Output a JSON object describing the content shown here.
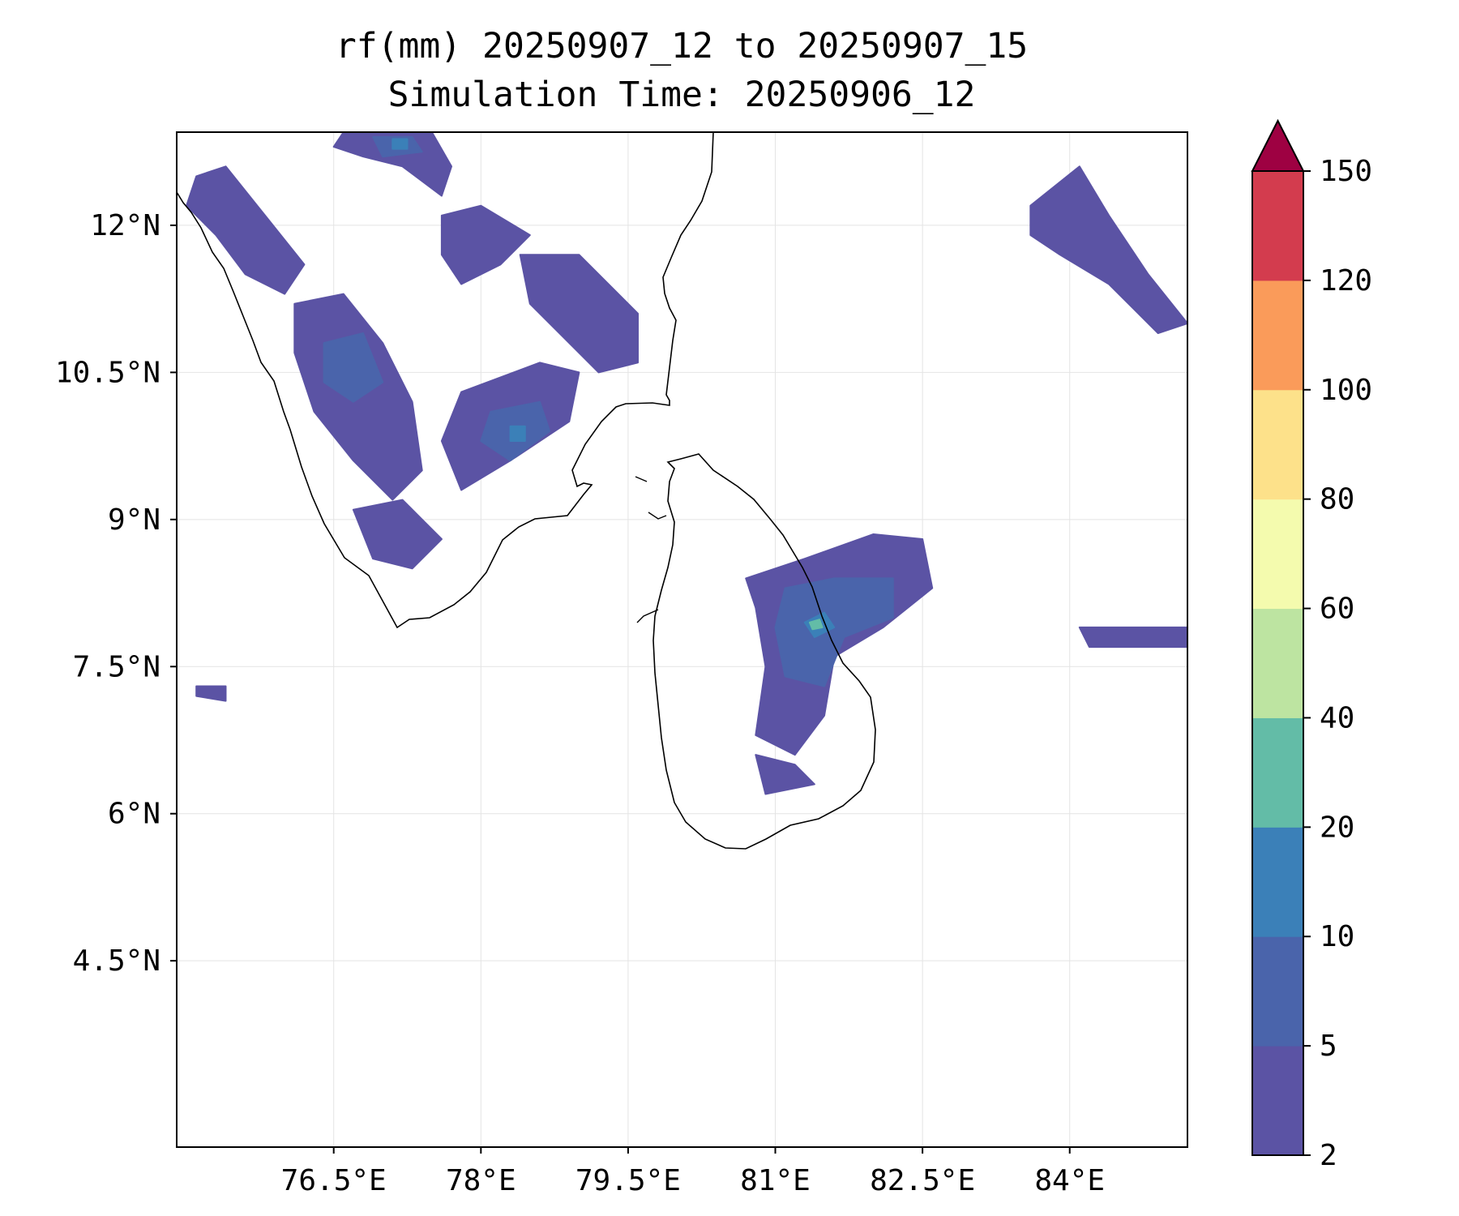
{
  "title": {
    "line1": "rf(mm) 20250907_12 to 20250907_15",
    "line2": "Simulation Time: 20250906_12"
  },
  "map": {
    "extent": {
      "lon_min": 74.9,
      "lon_max": 85.2,
      "lat_min": 2.6,
      "lat_max": 12.95
    },
    "x_ticks": [
      76.5,
      78,
      79.5,
      81,
      82.5,
      84
    ],
    "x_tick_labels": [
      "76.5°E",
      "78°E",
      "79.5°E",
      "81°E",
      "82.5°E",
      "84°E"
    ],
    "y_ticks": [
      4.5,
      6,
      7.5,
      9,
      10.5,
      12
    ],
    "y_tick_labels": [
      "4.5°N",
      "6°N",
      "7.5°N",
      "9°N",
      "10.5°N",
      "12°N"
    ],
    "gridlines": true,
    "coastline_color": "#000000",
    "rain_regions": [
      {
        "name": "north-kerala-western-ghats",
        "level": 0,
        "lonlat": [
          [
            75.1,
            12.5
          ],
          [
            75.4,
            12.6
          ],
          [
            75.8,
            12.1
          ],
          [
            76.2,
            11.6
          ],
          [
            76.0,
            11.3
          ],
          [
            75.6,
            11.5
          ],
          [
            75.3,
            11.9
          ],
          [
            75.0,
            12.2
          ]
        ]
      },
      {
        "name": "nilgiris-band",
        "level": 0,
        "lonlat": [
          [
            76.6,
            12.95
          ],
          [
            77.5,
            12.95
          ],
          [
            77.7,
            12.6
          ],
          [
            77.6,
            12.3
          ],
          [
            77.2,
            12.6
          ],
          [
            76.8,
            12.7
          ],
          [
            76.5,
            12.8
          ]
        ]
      },
      {
        "name": "nilgiris-core",
        "level": 1,
        "lonlat": [
          [
            76.9,
            12.9
          ],
          [
            77.3,
            12.9
          ],
          [
            77.4,
            12.75
          ],
          [
            77.0,
            12.7
          ]
        ]
      },
      {
        "name": "nilgiris-peak",
        "level": 2,
        "lonlat": [
          [
            77.1,
            12.88
          ],
          [
            77.25,
            12.88
          ],
          [
            77.25,
            12.78
          ],
          [
            77.1,
            12.78
          ]
        ]
      },
      {
        "name": "salem-band",
        "level": 0,
        "lonlat": [
          [
            77.6,
            12.1
          ],
          [
            78.0,
            12.2
          ],
          [
            78.5,
            11.9
          ],
          [
            78.2,
            11.6
          ],
          [
            77.8,
            11.4
          ],
          [
            77.6,
            11.7
          ]
        ]
      },
      {
        "name": "trichy-band",
        "level": 0,
        "lonlat": [
          [
            78.4,
            11.7
          ],
          [
            79.0,
            11.7
          ],
          [
            79.6,
            11.1
          ],
          [
            79.6,
            10.6
          ],
          [
            79.2,
            10.5
          ],
          [
            78.8,
            10.9
          ],
          [
            78.5,
            11.2
          ]
        ]
      },
      {
        "name": "madurai-band",
        "level": 0,
        "lonlat": [
          [
            77.8,
            10.3
          ],
          [
            78.6,
            10.6
          ],
          [
            79.0,
            10.5
          ],
          [
            78.9,
            10.0
          ],
          [
            78.3,
            9.6
          ],
          [
            77.8,
            9.3
          ],
          [
            77.6,
            9.8
          ]
        ]
      },
      {
        "name": "madurai-core",
        "level": 1,
        "lonlat": [
          [
            78.1,
            10.1
          ],
          [
            78.6,
            10.2
          ],
          [
            78.7,
            9.9
          ],
          [
            78.3,
            9.6
          ],
          [
            78.0,
            9.8
          ]
        ]
      },
      {
        "name": "madurai-peak",
        "level": 2,
        "lonlat": [
          [
            78.3,
            9.95
          ],
          [
            78.45,
            9.95
          ],
          [
            78.45,
            9.8
          ],
          [
            78.3,
            9.8
          ]
        ]
      },
      {
        "name": "kerala-ghats-south",
        "level": 0,
        "lonlat": [
          [
            76.1,
            11.2
          ],
          [
            76.6,
            11.3
          ],
          [
            77.0,
            10.8
          ],
          [
            77.3,
            10.2
          ],
          [
            77.4,
            9.5
          ],
          [
            77.1,
            9.2
          ],
          [
            76.7,
            9.6
          ],
          [
            76.3,
            10.1
          ],
          [
            76.1,
            10.7
          ]
        ]
      },
      {
        "name": "kerala-ghats-core",
        "level": 1,
        "lonlat": [
          [
            76.4,
            10.8
          ],
          [
            76.8,
            10.9
          ],
          [
            77.0,
            10.4
          ],
          [
            76.7,
            10.2
          ],
          [
            76.4,
            10.4
          ]
        ]
      },
      {
        "name": "kanyakumari-patch",
        "level": 0,
        "lonlat": [
          [
            76.7,
            9.1
          ],
          [
            77.2,
            9.2
          ],
          [
            77.6,
            8.8
          ],
          [
            77.3,
            8.5
          ],
          [
            76.9,
            8.6
          ]
        ]
      },
      {
        "name": "east-sri-lanka-band",
        "level": 0,
        "lonlat": [
          [
            80.7,
            8.4
          ],
          [
            81.3,
            8.6
          ],
          [
            82.0,
            8.85
          ],
          [
            82.5,
            8.8
          ],
          [
            82.6,
            8.3
          ],
          [
            82.1,
            7.9
          ],
          [
            81.6,
            7.6
          ],
          [
            81.5,
            7.0
          ],
          [
            81.2,
            6.6
          ],
          [
            80.8,
            6.8
          ],
          [
            80.9,
            7.5
          ],
          [
            80.8,
            8.1
          ]
        ]
      },
      {
        "name": "east-sri-lanka-core",
        "level": 1,
        "lonlat": [
          [
            81.1,
            8.3
          ],
          [
            81.6,
            8.4
          ],
          [
            82.2,
            8.4
          ],
          [
            82.2,
            8.0
          ],
          [
            81.7,
            7.8
          ],
          [
            81.5,
            7.3
          ],
          [
            81.1,
            7.4
          ],
          [
            81.0,
            7.9
          ]
        ]
      },
      {
        "name": "batticaloa-peak",
        "level": 2,
        "lonlat": [
          [
            81.3,
            7.95
          ],
          [
            81.5,
            8.05
          ],
          [
            81.6,
            7.9
          ],
          [
            81.4,
            7.8
          ]
        ]
      },
      {
        "name": "batticaloa-peak-inner",
        "level": 3,
        "lonlat": [
          [
            81.35,
            7.95
          ],
          [
            81.45,
            7.98
          ],
          [
            81.48,
            7.9
          ],
          [
            81.38,
            7.88
          ]
        ]
      },
      {
        "name": "south-sri-lanka-patch",
        "level": 0,
        "lonlat": [
          [
            80.8,
            6.6
          ],
          [
            81.2,
            6.5
          ],
          [
            81.4,
            6.3
          ],
          [
            80.9,
            6.2
          ]
        ]
      },
      {
        "name": "bay-of-bengal-northeast",
        "level": 0,
        "lonlat": [
          [
            83.6,
            12.2
          ],
          [
            84.1,
            12.6
          ],
          [
            84.4,
            12.1
          ],
          [
            84.8,
            11.5
          ],
          [
            85.2,
            11.0
          ],
          [
            84.9,
            10.9
          ],
          [
            84.4,
            11.4
          ],
          [
            83.9,
            11.7
          ],
          [
            83.6,
            11.9
          ]
        ]
      },
      {
        "name": "bay-of-bengal-east",
        "level": 0,
        "lonlat": [
          [
            84.1,
            7.9
          ],
          [
            85.2,
            7.9
          ],
          [
            85.2,
            7.7
          ],
          [
            84.2,
            7.7
          ]
        ]
      },
      {
        "name": "laccadive-patch",
        "level": 0,
        "lonlat": [
          [
            75.1,
            7.3
          ],
          [
            75.4,
            7.3
          ],
          [
            75.4,
            7.15
          ],
          [
            75.1,
            7.2
          ]
        ]
      }
    ]
  },
  "colorbar": {
    "levels": [
      2,
      5,
      10,
      20,
      40,
      60,
      80,
      100,
      120,
      150
    ],
    "labels": [
      "2",
      "5",
      "10",
      "20",
      "40",
      "60",
      "80",
      "100",
      "120",
      "150"
    ],
    "colors": [
      "#5b53a4",
      "#4a64ab",
      "#3b80b8",
      "#63bca7",
      "#bde4a1",
      "#f4fbae",
      "#fde18a",
      "#fa9b5a",
      "#d33c4e"
    ],
    "extend_color": "#9e0142",
    "extend": "max"
  }
}
